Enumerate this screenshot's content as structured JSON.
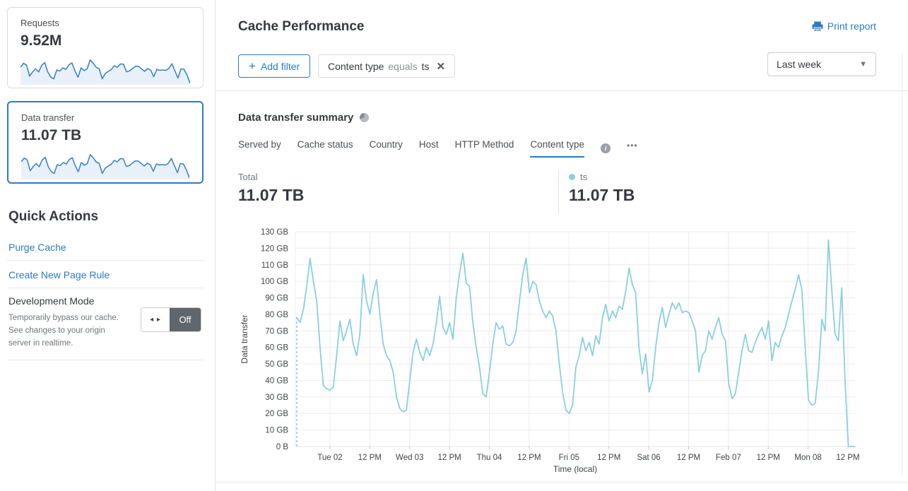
{
  "colors": {
    "accent_blue": "#2c7bbf",
    "chart_line": "#8acfdf",
    "spark_line": "#3f84c4",
    "spark_fill": "#e8f1f9",
    "grid": "#ececec",
    "toggle_off_bg": "#5f676d"
  },
  "icons": {
    "plus": "+",
    "close": "✕",
    "caret_down": "▼",
    "more": "•••",
    "toggle_arrows": "◂ ▸",
    "info": "i"
  },
  "sidebar": {
    "cards": [
      {
        "label": "Requests",
        "value": "9.52M",
        "selected": false,
        "sparkline": [
          78,
          97,
          88,
          35,
          55,
          70,
          55,
          88,
          101,
          55,
          30,
          22,
          65,
          60,
          75,
          68,
          90,
          99,
          60,
          30,
          75,
          62,
          70,
          114,
          98,
          78,
          70,
          22,
          48,
          58,
          67,
          86,
          78,
          94,
          93,
          56,
          60,
          72,
          83,
          82,
          70,
          58,
          72,
          64,
          32,
          68,
          63,
          65,
          63,
          72,
          95,
          60,
          26,
          70,
          68,
          40,
          0
        ]
      },
      {
        "label": "Data transfer",
        "value": "11.07 TB",
        "selected": true,
        "sparkline": [
          78,
          97,
          88,
          35,
          55,
          70,
          55,
          88,
          101,
          55,
          30,
          22,
          65,
          60,
          75,
          68,
          90,
          99,
          60,
          30,
          75,
          62,
          70,
          114,
          98,
          78,
          70,
          22,
          48,
          58,
          67,
          86,
          78,
          94,
          93,
          56,
          60,
          72,
          83,
          82,
          70,
          58,
          72,
          64,
          32,
          68,
          63,
          65,
          63,
          72,
          95,
          60,
          26,
          70,
          68,
          40,
          0
        ]
      }
    ],
    "quick_actions": {
      "title": "Quick Actions",
      "links": [
        {
          "label": "Purge Cache"
        },
        {
          "label": "Create New Page Rule"
        }
      ],
      "development_mode": {
        "label": "Development Mode",
        "description": "Temporarily bypass our cache. See changes to your origin server in realtime.",
        "toggle_state": "Off"
      }
    }
  },
  "header": {
    "title": "Cache Performance",
    "print_report": "Print report",
    "add_filter_label": "Add filter",
    "filter_chip": {
      "field": "Content type",
      "operator": "equals",
      "value": "ts"
    },
    "time_range": "Last week"
  },
  "summary": {
    "title": "Data transfer summary",
    "tabs": [
      "Served by",
      "Cache status",
      "Country",
      "Host",
      "HTTP Method",
      "Content type"
    ],
    "active_tab": "Content type",
    "total_label": "Total",
    "total_value": "11.07 TB",
    "series_label": "ts",
    "series_value": "11.07 TB"
  },
  "chart_data": {
    "type": "line",
    "title": "Data transfer summary",
    "xlabel": "Time (local)",
    "ylabel": "Data transfer",
    "unit": "GB",
    "ylim": [
      0,
      130
    ],
    "grid": true,
    "legend_position": "top-right",
    "start_boundary_dashed": true,
    "ytick_labels": [
      "0 B",
      "10 GB",
      "20 GB",
      "30 GB",
      "40 GB",
      "50 GB",
      "60 GB",
      "70 GB",
      "80 GB",
      "90 GB",
      "100 GB",
      "110 GB",
      "120 GB",
      "130 GB"
    ],
    "xtick_labels": [
      "Tue 02",
      "12 PM",
      "Wed 03",
      "12 PM",
      "Thu 04",
      "12 PM",
      "Fri 05",
      "12 PM",
      "Sat 06",
      "12 PM",
      "Feb 07",
      "12 PM",
      "Mon 08",
      "12 PM"
    ],
    "series": [
      {
        "name": "ts",
        "color": "#8acfdf",
        "total": "11.07 TB",
        "values": [
          78,
          75,
          83,
          97,
          114,
          100,
          88,
          60,
          37,
          35,
          34,
          36,
          55,
          76,
          64,
          70,
          77,
          62,
          55,
          68,
          104,
          88,
          80,
          93,
          101,
          80,
          62,
          55,
          52,
          45,
          30,
          23,
          21,
          22,
          40,
          57,
          65,
          57,
          52,
          60,
          55,
          62,
          75,
          91,
          72,
          68,
          75,
          65,
          90,
          105,
          117,
          99,
          97,
          75,
          60,
          48,
          32,
          30,
          45,
          62,
          75,
          71,
          73,
          62,
          61,
          63,
          70,
          88,
          104,
          114,
          93,
          100,
          98,
          88,
          82,
          78,
          82,
          79,
          70,
          50,
          33,
          22,
          20,
          25,
          48,
          55,
          66,
          58,
          63,
          55,
          67,
          62,
          78,
          86,
          76,
          82,
          78,
          85,
          83,
          94,
          108,
          98,
          93,
          60,
          44,
          56,
          33,
          40,
          60,
          75,
          84,
          72,
          80,
          87,
          83,
          87,
          81,
          82,
          81,
          76,
          70,
          45,
          55,
          58,
          70,
          65,
          72,
          78,
          68,
          64,
          38,
          29,
          32,
          45,
          58,
          68,
          58,
          57,
          63,
          68,
          72,
          65,
          76,
          52,
          63,
          60,
          67,
          72,
          80,
          88,
          95,
          104,
          95,
          60,
          28,
          25,
          26,
          45,
          77,
          70,
          125,
          95,
          68,
          64,
          96,
          40,
          0,
          0,
          0
        ]
      }
    ]
  }
}
